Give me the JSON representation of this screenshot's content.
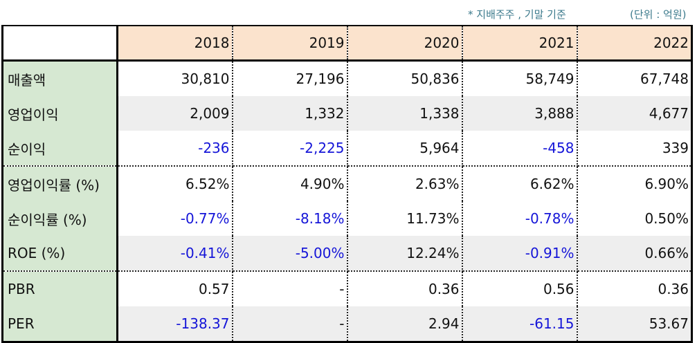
{
  "notes": {
    "basis": "* 지배주주 , 기말 기준",
    "unit": "(단위 : 억원)"
  },
  "colors": {
    "header_bg": "#fbe3cd",
    "label_bg": "#d6e8d2",
    "alt_row_bg": "#eeeeee",
    "negative_text": "#1515d8",
    "note_text": "#3c7a8c"
  },
  "table": {
    "years": [
      "2018",
      "2019",
      "2020",
      "2021",
      "2022"
    ],
    "rows": [
      {
        "label": "매출액",
        "values": [
          "30,810",
          "27,196",
          "50,836",
          "58,749",
          "67,748"
        ]
      },
      {
        "label": "영업이익",
        "values": [
          "2,009",
          "1,332",
          "1,338",
          "3,888",
          "4,677"
        ]
      },
      {
        "label": "순이익",
        "values": [
          "-236",
          "-2,225",
          "5,964",
          "-458",
          "339"
        ]
      },
      {
        "label": "영업이익률 (%)",
        "values": [
          "6.52%",
          "4.90%",
          "2.63%",
          "6.62%",
          "6.90%"
        ]
      },
      {
        "label": "순이익률 (%)",
        "values": [
          "-0.77%",
          "-8.18%",
          "11.73%",
          "-0.78%",
          "0.50%"
        ]
      },
      {
        "label": "ROE (%)",
        "values": [
          "-0.41%",
          "-5.00%",
          "12.24%",
          "-0.91%",
          "0.66%"
        ]
      },
      {
        "label": "PBR",
        "values": [
          "0.57",
          "-",
          "0.36",
          "0.56",
          "0.36"
        ]
      },
      {
        "label": "PER",
        "values": [
          "-138.37",
          "-",
          "2.94",
          "-61.15",
          "53.67"
        ]
      }
    ]
  }
}
